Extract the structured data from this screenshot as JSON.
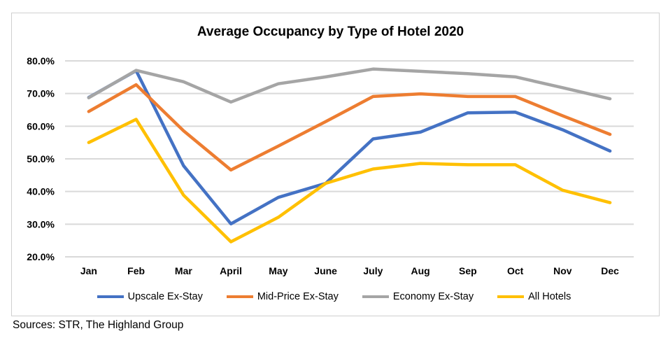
{
  "chart_data": {
    "type": "line",
    "title": "Average Occupancy by Type of Hotel 2020",
    "xlabel": "",
    "ylabel": "",
    "categories": [
      "Jan",
      "Feb",
      "Mar",
      "April",
      "May",
      "June",
      "July",
      "Aug",
      "Sep",
      "Oct",
      "Nov",
      "Dec"
    ],
    "ylim": [
      20,
      80
    ],
    "yticks": [
      "20.0%",
      "30.0%",
      "40.0%",
      "50.0%",
      "60.0%",
      "70.0%",
      "80.0%"
    ],
    "grid": true,
    "legend_position": "bottom",
    "series": [
      {
        "name": "Upscale Ex-Stay",
        "color": "#4472c4",
        "values": [
          68.8,
          77.0,
          47.9,
          30.1,
          38.2,
          42.5,
          56.1,
          58.2,
          64.1,
          64.3,
          58.9,
          52.4
        ]
      },
      {
        "name": "Mid-Price Ex-Stay",
        "color": "#ed7d31",
        "values": [
          64.5,
          72.7,
          58.6,
          46.6,
          53.9,
          61.4,
          69.1,
          69.9,
          69.1,
          69.1,
          63.2,
          57.5
        ]
      },
      {
        "name": "Economy Ex-Stay",
        "color": "#a5a5a5",
        "values": [
          68.7,
          77.1,
          73.6,
          67.4,
          73.0,
          75.1,
          77.5,
          76.8,
          76.1,
          75.1,
          71.8,
          68.4
        ]
      },
      {
        "name": "All Hotels",
        "color": "#ffc000",
        "values": [
          55.0,
          62.1,
          38.9,
          24.6,
          32.1,
          42.5,
          46.9,
          48.6,
          48.2,
          48.2,
          40.4,
          36.6
        ]
      }
    ]
  },
  "source": "Sources: STR, The Highland Group"
}
